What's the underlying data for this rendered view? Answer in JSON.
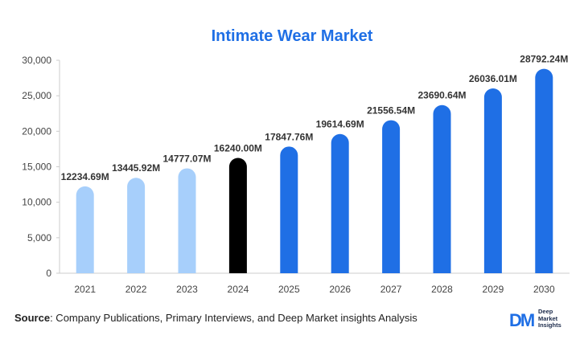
{
  "source": {
    "label": "Source",
    "text": ": Company Publications, Primary Interviews, and Deep Market insights Analysis"
  },
  "logo": {
    "mark": "DM",
    "line1": "Deep",
    "line2": "Market",
    "line3": "Insights"
  },
  "chart_data": {
    "type": "bar",
    "title": "Intimate Wear Market",
    "xlabel": "",
    "ylabel": "",
    "categories": [
      "2021",
      "2022",
      "2023",
      "2024",
      "2025",
      "2026",
      "2027",
      "2028",
      "2029",
      "2030"
    ],
    "values": [
      12234.69,
      13445.92,
      14777.07,
      16240.0,
      17847.76,
      19614.69,
      21556.54,
      23690.64,
      26036.01,
      28792.24
    ],
    "data_labels": [
      "12234.69M",
      "13445.92M",
      "14777.07M",
      "16240.00M",
      "17847.76M",
      "19614.69M",
      "21556.54M",
      "23690.64M",
      "26036.01M",
      "28792.24M"
    ],
    "ylim": [
      0,
      30000
    ],
    "yticks": [
      0,
      5000,
      10000,
      15000,
      20000,
      25000,
      30000
    ],
    "ytick_labels": [
      "0",
      "5,000",
      "10,000",
      "15,000",
      "20,000",
      "25,000",
      "30,000"
    ],
    "grid": false,
    "colors": {
      "historical": "#a7cffb",
      "current": "#000000",
      "forecast": "#1f6fe5",
      "title": "#1f6fe5",
      "axis": "#cccccc"
    },
    "bar_color_groups": [
      "historical",
      "historical",
      "historical",
      "current",
      "forecast",
      "forecast",
      "forecast",
      "forecast",
      "forecast",
      "forecast"
    ]
  }
}
